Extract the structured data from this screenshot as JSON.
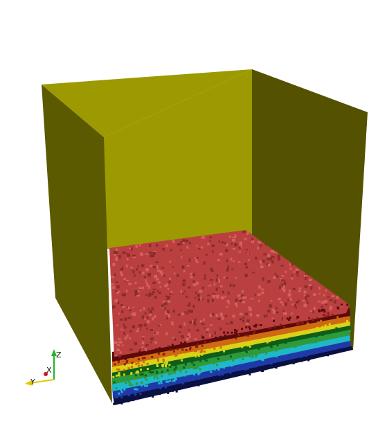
{
  "scene": {
    "background": "#ffffff",
    "container": {
      "back_wall_color": "#9c9a00",
      "left_wall_color": "#5c5a00",
      "right_wall_color": "#545200"
    },
    "particle_bed": {
      "layer_colors": [
        "#0b1042",
        "#1f3aa8",
        "#20b7c8",
        "#2f9a3a",
        "#0c5e1a",
        "#d9d216",
        "#d06a12",
        "#8b1a1a",
        "#5a0a0a"
      ],
      "top_color": "#b9403f",
      "top_dark_color": "#8a2c2c"
    }
  },
  "orientation_axes": {
    "x_label": "X",
    "y_label": "Y",
    "z_label": "Z",
    "x_color": "#d11a1a",
    "y_color": "#e0c800",
    "z_color": "#1fb81f"
  }
}
